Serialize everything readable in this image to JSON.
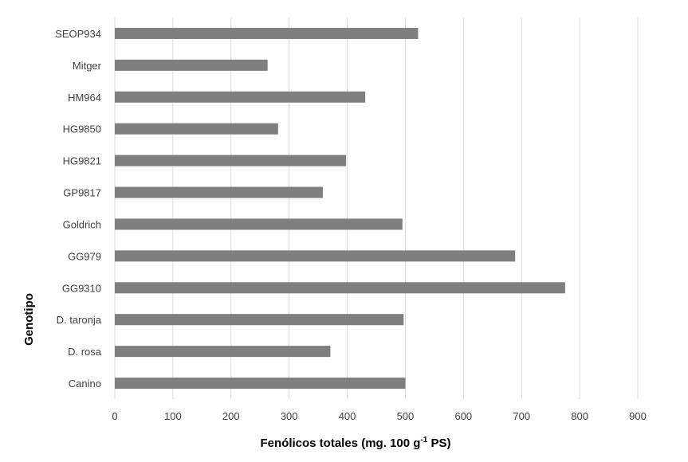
{
  "chart_data": {
    "type": "bar",
    "orientation": "horizontal",
    "categories": [
      "SEOP934",
      "Mitger",
      "HM964",
      "HG9850",
      "HG9821",
      "GP9817",
      "Goldrich",
      "GG979",
      "GG9310",
      "D. taronja",
      "D. rosa",
      "Canino"
    ],
    "values": [
      522,
      263,
      431,
      281,
      398,
      358,
      495,
      689,
      775,
      497,
      371,
      500
    ],
    "xlabel": "Fenólicos totales (mg. 100 g-1 PS)",
    "xlabel_parts": {
      "before": "Fenólicos totales (mg. 100 g",
      "superscript": "-1",
      "after": " PS)"
    },
    "ylabel": "Genotipo",
    "xlim": [
      0,
      900
    ],
    "xticks": [
      "0",
      "100",
      "200",
      "300",
      "400",
      "500",
      "600",
      "700",
      "800",
      "900"
    ],
    "grid": "vertical",
    "bar_color": "#7f7f7f",
    "grid_color": "#d9d9d9"
  }
}
